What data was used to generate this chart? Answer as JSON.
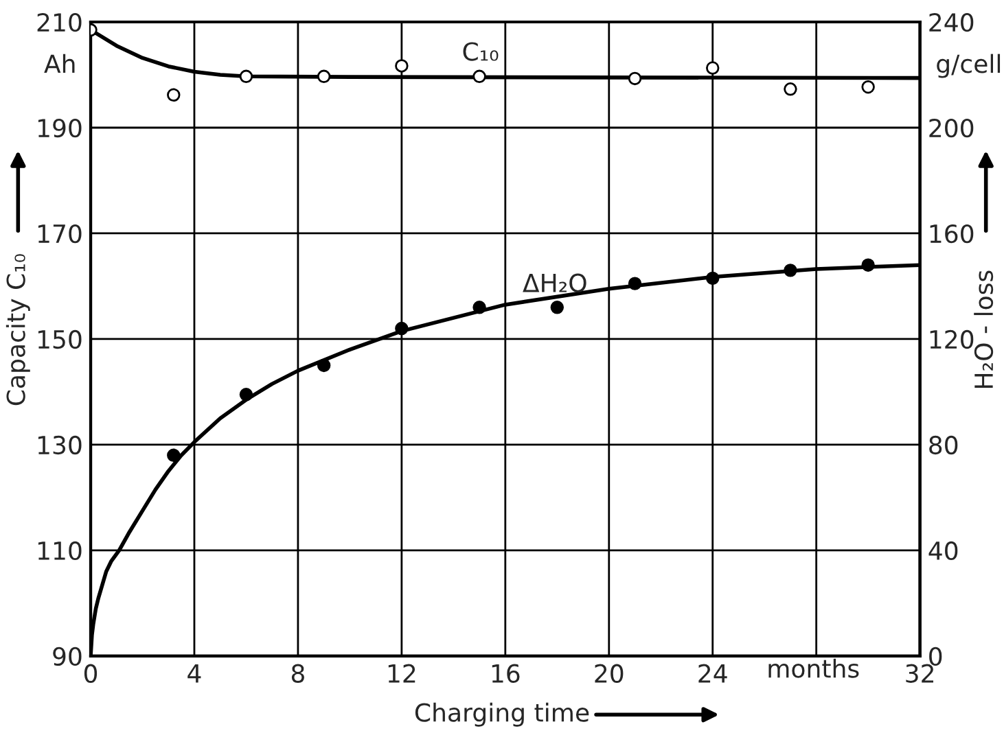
{
  "chart_data": {
    "type": "scatter",
    "xlabel": "Charging time",
    "ylabel": "Capacity C₁₀",
    "y2label": "H₂O - loss",
    "xlim": [
      0,
      32
    ],
    "xticks": [
      0,
      4,
      8,
      12,
      16,
      20,
      24,
      {
        "value": 28,
        "label": null
      },
      32
    ],
    "ylim": [
      90,
      210
    ],
    "yticks": [
      90,
      110,
      130,
      150,
      170,
      190,
      210
    ],
    "y2lim": [
      0,
      240
    ],
    "y2ticks": [
      0,
      40,
      80,
      120,
      160,
      200,
      240
    ],
    "grid": true,
    "legend": false,
    "annotations": [
      "Ah",
      "g/cell",
      "months"
    ],
    "series": [
      {
        "name": "C₁₀",
        "marker": "circle",
        "color": "#ffffff",
        "x": [
          0,
          3.2,
          6,
          9,
          12,
          15,
          21,
          24,
          27,
          30
        ],
        "values": [
          208.5,
          196.2,
          199.7,
          199.7,
          201.7,
          199.7,
          199.3,
          201.3,
          197.3,
          197.7
        ]
      },
      {
        "type": "line",
        "color": "#000000",
        "x": [
          0,
          1,
          2,
          3,
          4,
          5,
          6,
          10,
          20,
          32
        ],
        "values": [
          208.5,
          205.5,
          203.2,
          201.6,
          200.6,
          200.0,
          199.7,
          199.6,
          199.5,
          199.4
        ]
      },
      {
        "name": "ΔH₂O",
        "axis": "y2",
        "marker": "circle",
        "color": "#000000",
        "x": [
          3.2,
          6,
          9,
          12,
          15,
          18,
          21,
          24,
          27,
          30
        ],
        "values": [
          76,
          99,
          110,
          124,
          132,
          132,
          141,
          143,
          146,
          148
        ]
      },
      {
        "type": "line",
        "axis": "y2",
        "color": "#000000",
        "x": [
          0,
          0.05,
          0.1,
          0.2,
          0.3,
          0.45,
          0.6,
          0.8,
          1.1,
          1.5,
          2,
          2.5,
          3,
          3.5,
          4,
          5,
          6,
          7,
          8,
          10,
          12,
          16,
          20,
          24,
          28,
          32
        ],
        "values": [
          0,
          8,
          12,
          18,
          22,
          27,
          32,
          36,
          40,
          47,
          55,
          63,
          70,
          76,
          81,
          90,
          97,
          103,
          108,
          116,
          123,
          133,
          139,
          143.5,
          146.5,
          148
        ]
      }
    ]
  }
}
